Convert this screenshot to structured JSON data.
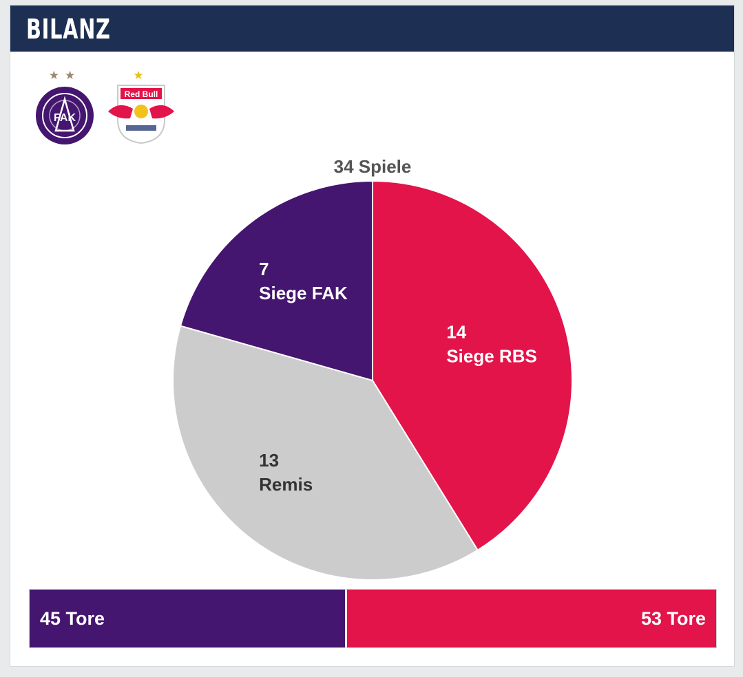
{
  "header": {
    "title": "BILANZ"
  },
  "teams": {
    "home": {
      "logo_text": "FAK",
      "stars": "★★",
      "color": "#44166f",
      "star_color": "#9b8a6e"
    },
    "away": {
      "logo_text": "Red Bull",
      "stars": "★",
      "color": "#e2144a",
      "star_color": "#e8c21a"
    }
  },
  "chart_data": {
    "type": "pie",
    "title": "34 Spiele",
    "total": 34,
    "slices": [
      {
        "value": 14,
        "label": "Siege RBS",
        "color": "#e2144a"
      },
      {
        "value": 13,
        "label": "Remis",
        "color": "#cccccc"
      },
      {
        "value": 7,
        "label": "Siege FAK",
        "color": "#44166f"
      }
    ]
  },
  "goals": {
    "home": {
      "value": 45,
      "label": "45 Tore",
      "color": "#44166f"
    },
    "away": {
      "value": 53,
      "label": "53 Tore",
      "color": "#e2144a"
    }
  }
}
